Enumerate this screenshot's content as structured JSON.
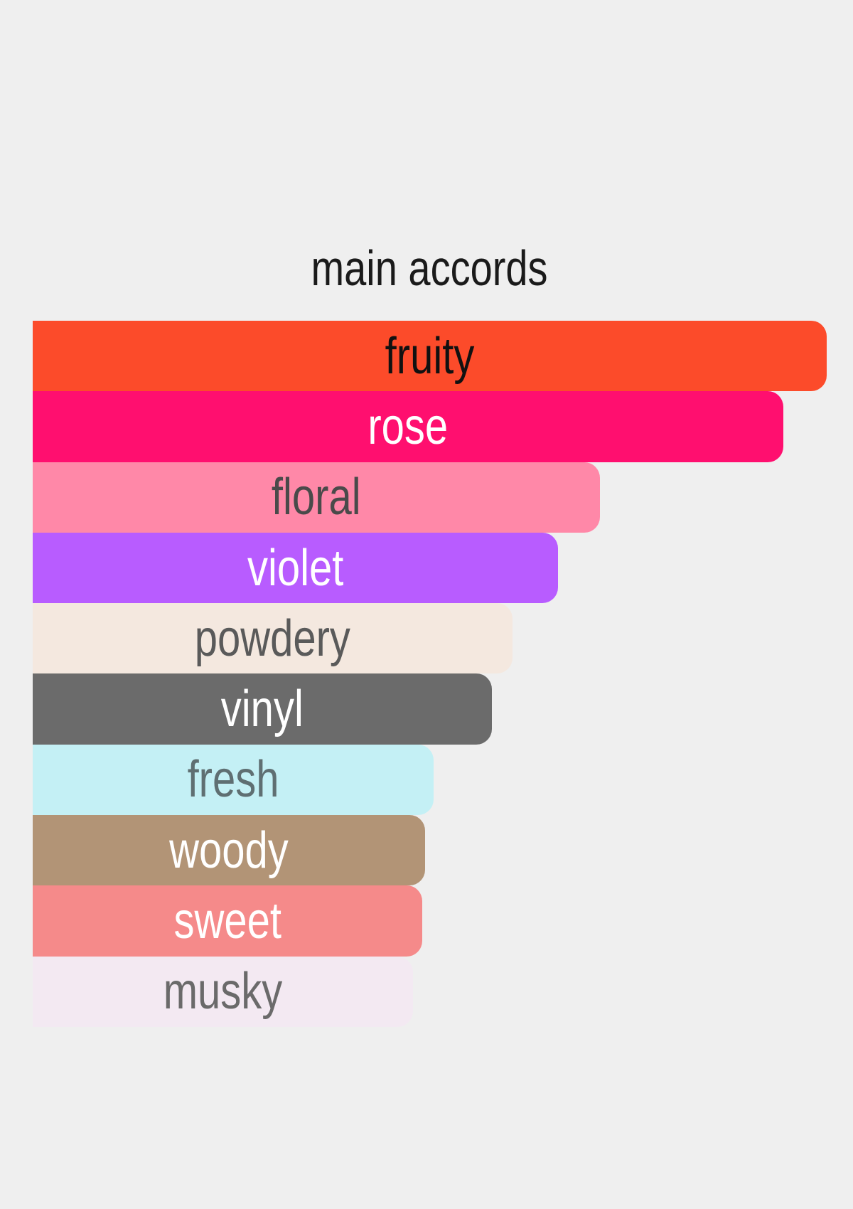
{
  "chart_data": {
    "type": "bar",
    "orientation": "horizontal",
    "title": "main accords",
    "categories": [
      "fruity",
      "rose",
      "floral",
      "violet",
      "powdery",
      "vinyl",
      "fresh",
      "woody",
      "sweet",
      "musky"
    ],
    "values": [
      100,
      94.5,
      71.4,
      66.2,
      60.4,
      57.8,
      50.5,
      49.4,
      49.1,
      47.9
    ],
    "colors": [
      "#fc4b2a",
      "#ff0f6f",
      "#ff88a8",
      "#b85cff",
      "#f4e8df",
      "#6b6b6b",
      "#c4f0f5",
      "#b29476",
      "#f58a8a",
      "#f3e9f2"
    ],
    "label_colors": [
      "#111111",
      "#ffffff",
      "#4a4a4a",
      "#ffffff",
      "#5a5a5a",
      "#ffffff",
      "#5f6f72",
      "#ffffff",
      "#ffffff",
      "#6a6a6a"
    ],
    "grid": false,
    "legend": "none"
  }
}
